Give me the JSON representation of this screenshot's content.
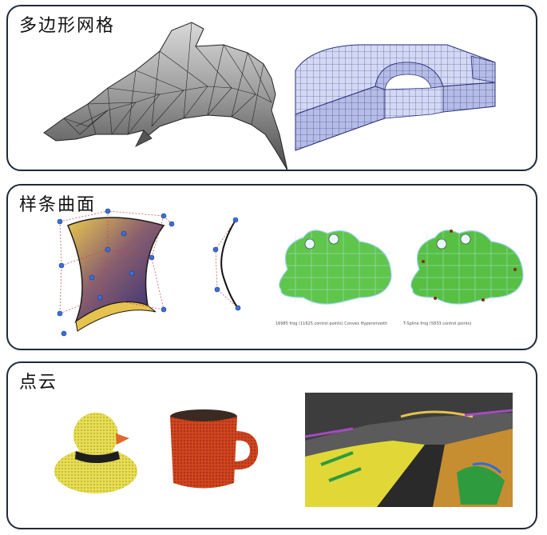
{
  "panels": [
    {
      "title": "多边形网格"
    },
    {
      "title": "样条曲面"
    },
    {
      "title": "点云"
    }
  ],
  "captions": {
    "frog_left": "16985 frog (11625 control points) Convex Hypersmooth",
    "frog_right": "T-Spline frog (5833 control points)"
  },
  "colors": {
    "border": "#1f2a3a",
    "mesh_gray": "#9c9c9c",
    "mesh_blue": "#c9d1ef",
    "spline_yellow": "#e8c34a",
    "spline_purple": "#4a3a8a",
    "frog_green": "#5ec84a",
    "duck_yellow": "#efe66a",
    "mug_red": "#d2461e",
    "scan_yellow": "#f2ea2c"
  }
}
